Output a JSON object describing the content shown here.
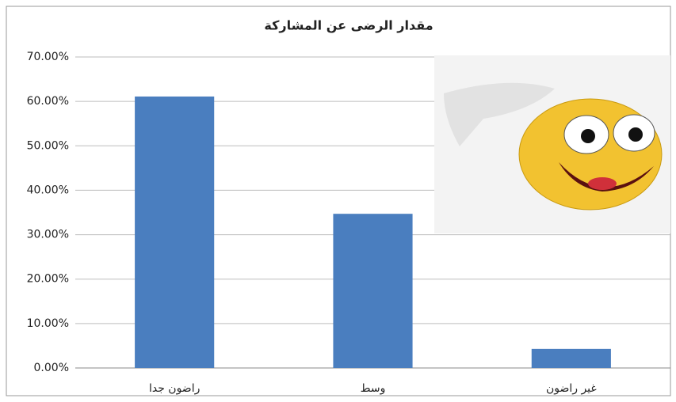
{
  "chart_data": {
    "type": "bar",
    "title": "مقدار الرضى عن المشاركة",
    "categories": [
      "راضون جدا",
      "وسط",
      "غير راضون"
    ],
    "values": [
      61.1,
      34.7,
      4.3
    ],
    "color": "#4a7ebf",
    "ylim": [
      0,
      70
    ],
    "yticks": [
      {
        "value": 0,
        "label": "0.00%"
      },
      {
        "value": 10,
        "label": "10.00%"
      },
      {
        "value": 20,
        "label": "20.00%"
      },
      {
        "value": 30,
        "label": "30.00%"
      },
      {
        "value": 40,
        "label": "40.00%"
      },
      {
        "value": 50,
        "label": "50.00%"
      },
      {
        "value": 60,
        "label": "60.00%"
      },
      {
        "value": 70,
        "label": "70.00%"
      }
    ],
    "grid": true
  }
}
